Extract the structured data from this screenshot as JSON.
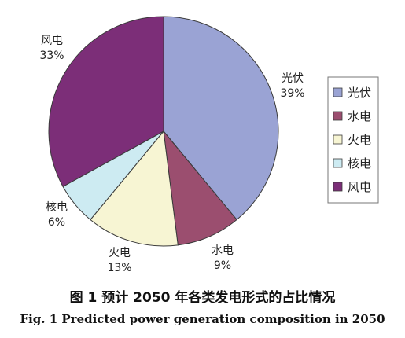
{
  "chart_data": {
    "type": "pie",
    "categories": [
      "光伏",
      "水电",
      "火电",
      "核电",
      "风电"
    ],
    "values": [
      39,
      9,
      13,
      6,
      33
    ],
    "value_labels": [
      "39%",
      "9%",
      "13%",
      "6%",
      "33%"
    ],
    "colors": [
      "#9aa3d4",
      "#9b4e6f",
      "#f7f5d3",
      "#cdebf2",
      "#7c2e78"
    ],
    "start_direction": "top, clockwise",
    "legend": {
      "entries": [
        "光伏",
        "水电",
        "火电",
        "核电",
        "风电"
      ],
      "placement": "right"
    }
  },
  "caption": {
    "cn": "图 1 预计 2050 年各类发电形式的占比情况",
    "en": "Fig. 1 Predicted power generation composition in 2050"
  }
}
